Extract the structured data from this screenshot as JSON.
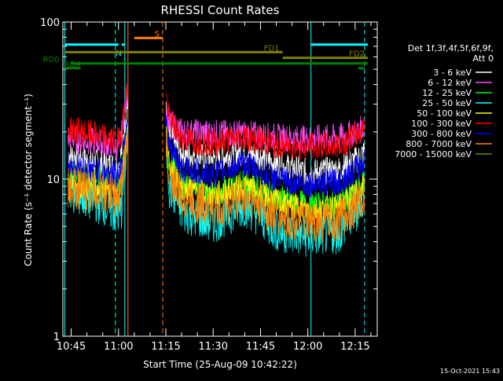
{
  "timestamp": "15-Oct-2021 15:43",
  "legend": {
    "header_line1": "Det 1f,3f,4f,5f,6f,9f,",
    "header_line2": "Att 0"
  },
  "chart_data": {
    "type": "line",
    "title": "RHESSI Count Rates",
    "xlabel": "Start Time (25-Aug-09 10:42:22)",
    "ylabel": "Count Rate (s⁻¹ detector segment⁻¹)",
    "y_scale": "log",
    "ylim": [
      1,
      100
    ],
    "xlim": [
      "10:42:22",
      "12:22:00"
    ],
    "x_tick_labels": [
      "10:45",
      "11:00",
      "11:15",
      "11:30",
      "11:45",
      "12:00",
      "12:15"
    ],
    "y_tick_labels": [
      "1",
      "10",
      "100"
    ],
    "series": [
      {
        "name": "3 - 6 keV",
        "color": "#ffffff",
        "x": [
          "10:44",
          "10:50",
          "10:55",
          "11:00",
          "11:01",
          "11:03",
          "11:15",
          "11:16",
          "11:20",
          "11:30",
          "11:40",
          "11:45",
          "11:50",
          "12:00",
          "12:10",
          "12:16",
          "12:18"
        ],
        "y": [
          14.5,
          13,
          12.5,
          12,
          15,
          31,
          27,
          19,
          14.5,
          13.5,
          15,
          14,
          12.5,
          11,
          11.5,
          13.5,
          15
        ]
      },
      {
        "name": "6 - 12 keV",
        "color": "#ff4cff",
        "x": [
          "10:44",
          "10:50",
          "10:55",
          "11:00",
          "11:01",
          "11:03",
          "11:15",
          "11:16",
          "11:20",
          "11:30",
          "11:40",
          "11:45",
          "11:50",
          "12:00",
          "12:10",
          "12:16",
          "12:18"
        ],
        "y": [
          18.5,
          17.5,
          17,
          16,
          19,
          37,
          28,
          23,
          20,
          19.5,
          19.5,
          19,
          18.5,
          18,
          18.5,
          20,
          22
        ]
      },
      {
        "name": "12 - 25 keV",
        "color": "#00ff00",
        "x": [
          "10:44",
          "10:50",
          "10:55",
          "11:00",
          "11:01",
          "11:03",
          "11:15",
          "11:16",
          "11:20",
          "11:30",
          "11:40",
          "11:45",
          "11:50",
          "12:00",
          "12:10",
          "12:16",
          "12:18"
        ],
        "y": [
          10.5,
          10,
          9.8,
          9.3,
          10.5,
          22,
          20,
          13,
          9.5,
          8.2,
          9.5,
          8.5,
          7.6,
          6.8,
          7,
          8.5,
          9.5
        ]
      },
      {
        "name": "25 - 50 keV",
        "color": "#00ffff",
        "x": [
          "10:44",
          "10:50",
          "10:55",
          "11:00",
          "11:01",
          "11:03",
          "11:15",
          "11:16",
          "11:20",
          "11:30",
          "11:40",
          "11:45",
          "11:50",
          "12:00",
          "12:10",
          "12:16",
          "12:18"
        ],
        "y": [
          8.5,
          7.5,
          7,
          5.8,
          6.5,
          18,
          17,
          9,
          6.2,
          5.3,
          6.8,
          5.8,
          4.7,
          4.3,
          4.6,
          6.5,
          8
        ]
      },
      {
        "name": "50 - 100 keV",
        "color": "#ffff00",
        "x": [
          "10:44",
          "10:50",
          "10:55",
          "11:00",
          "11:01",
          "11:03",
          "11:15",
          "11:16",
          "11:20",
          "11:30",
          "11:40",
          "11:45",
          "11:50",
          "12:00",
          "12:10",
          "12:16",
          "12:18"
        ],
        "y": [
          9.5,
          9,
          8.8,
          8.4,
          9.5,
          20,
          19,
          12,
          9,
          7.8,
          9,
          8.2,
          7.2,
          6.3,
          6.6,
          8.2,
          9.2
        ]
      },
      {
        "name": "100 - 300 keV",
        "color": "#ff0000",
        "x": [
          "10:44",
          "10:50",
          "10:55",
          "11:00",
          "11:01",
          "11:03",
          "11:15",
          "11:16",
          "11:20",
          "11:30",
          "11:40",
          "11:45",
          "11:50",
          "12:00",
          "12:10",
          "12:16",
          "12:18"
        ],
        "y": [
          21,
          19.5,
          18.5,
          17.5,
          20,
          40,
          35,
          24,
          18,
          17,
          18.5,
          17.5,
          16.5,
          16,
          16.5,
          19.5,
          22
        ]
      },
      {
        "name": "300 - 800 keV",
        "color": "#0000ff",
        "x": [
          "10:44",
          "10:50",
          "10:55",
          "11:00",
          "11:01",
          "11:03",
          "11:15",
          "11:16",
          "11:20",
          "11:30",
          "11:40",
          "11:45",
          "11:50",
          "12:00",
          "12:10",
          "12:16",
          "12:18"
        ],
        "y": [
          12.5,
          11.5,
          11,
          10.5,
          12.5,
          26,
          24,
          16,
          11.5,
          10.6,
          12.5,
          11.2,
          10,
          9.3,
          9.6,
          11.8,
          13
        ]
      },
      {
        "name": "800 - 7000 keV",
        "color": "#ff8000",
        "x": [
          "10:44",
          "10:50",
          "10:55",
          "11:00",
          "11:01",
          "11:03",
          "11:15",
          "11:16",
          "11:20",
          "11:30",
          "11:40",
          "11:45",
          "11:50",
          "12:00",
          "12:10",
          "12:16",
          "12:18"
        ],
        "y": [
          9,
          8.5,
          8.2,
          7.6,
          8.6,
          17,
          18,
          10.5,
          7.6,
          6.5,
          7.6,
          6.8,
          5.8,
          5.2,
          5.5,
          7,
          8.3
        ]
      },
      {
        "name": "7000 - 15000 keV",
        "color": "#808000",
        "x": [],
        "y": []
      }
    ],
    "attenuator_bars": [
      {
        "name": "",
        "color": "#00ffff",
        "x_start": "10:43",
        "x_end": "11:00",
        "level": 76
      },
      {
        "name": "S",
        "color": "#ff8000",
        "x_start": "11:05",
        "x_end": "11:14",
        "level": 83
      },
      {
        "name": "N",
        "color": "#00ffff",
        "x_start": "11:01",
        "x_end": "11:02",
        "level": 76
      },
      {
        "name": "",
        "color": "#00ffff",
        "x_start": "12:01",
        "x_end": "12:19",
        "level": 76
      },
      {
        "name": "FD1",
        "color": "#808000",
        "x_start": "10:43",
        "x_end": "11:52",
        "level": 68
      },
      {
        "name": "FD2",
        "color": "#808000",
        "x_start": "11:52",
        "x_end": "12:19",
        "level": 62
      },
      {
        "name": "RD0",
        "color": "#008000",
        "x_start": "10:45",
        "x_end": "12:19",
        "level": 56
      },
      {
        "name": "RD4",
        "color": "#008000",
        "x_start": "10:43",
        "x_end": "10:48",
        "level": 51
      },
      {
        "name": "",
        "color": "#008000",
        "x_start": "12:16",
        "x_end": "12:18",
        "level": 51
      }
    ],
    "vertical_lines": [
      {
        "x": "10:43",
        "color": "#00ffff",
        "style": "solid"
      },
      {
        "x": "10:59",
        "color": "#00ffff",
        "style": "dashed"
      },
      {
        "x": "11:02",
        "color": "#00ffff",
        "style": "solid"
      },
      {
        "x": "11:03",
        "color": "#ff8000",
        "style": "solid"
      },
      {
        "x": "11:14",
        "color": "#ff8000",
        "style": "dashed"
      },
      {
        "x": "12:01",
        "color": "#00ffff",
        "style": "solid"
      },
      {
        "x": "12:18",
        "color": "#00ffff",
        "style": "dashed"
      }
    ],
    "grid": false,
    "legend_position": "right"
  }
}
